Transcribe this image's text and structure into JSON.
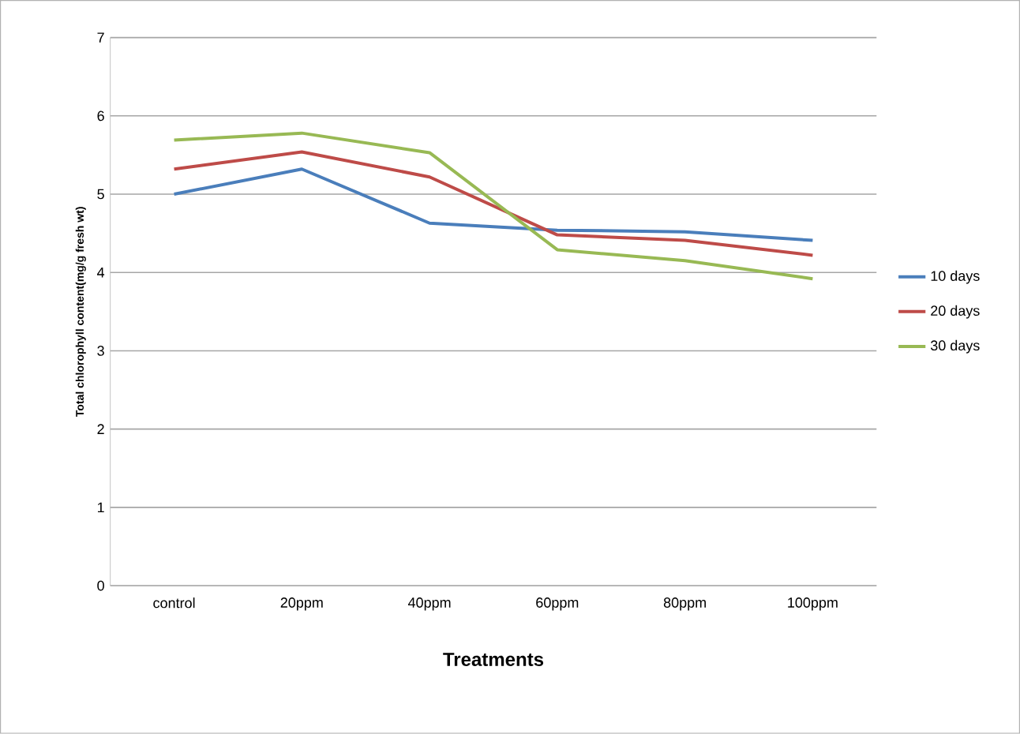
{
  "chart_data": {
    "type": "line",
    "xlabel": "Treatments",
    "ylabel": "Total chlorophyll content(mg/g fresh wt)",
    "categories": [
      "control",
      "20ppm",
      "40ppm",
      "60ppm",
      "80ppm",
      "100ppm"
    ],
    "series": [
      {
        "name": "10 days",
        "color": "#4a7ebb",
        "values": [
          5.0,
          5.32,
          4.63,
          4.54,
          4.52,
          4.41
        ]
      },
      {
        "name": "20 days",
        "color": "#be4b48",
        "values": [
          5.32,
          5.54,
          5.22,
          4.48,
          4.41,
          4.22
        ]
      },
      {
        "name": "30 days",
        "color": "#98b954",
        "values": [
          5.69,
          5.78,
          5.53,
          4.29,
          4.15,
          3.92
        ]
      }
    ],
    "ylim": [
      0,
      7
    ],
    "yticks": [
      0,
      1,
      2,
      3,
      4,
      5,
      6,
      7
    ],
    "grid": "y",
    "legend": "right",
    "marker": "none",
    "line_style": "solid"
  }
}
